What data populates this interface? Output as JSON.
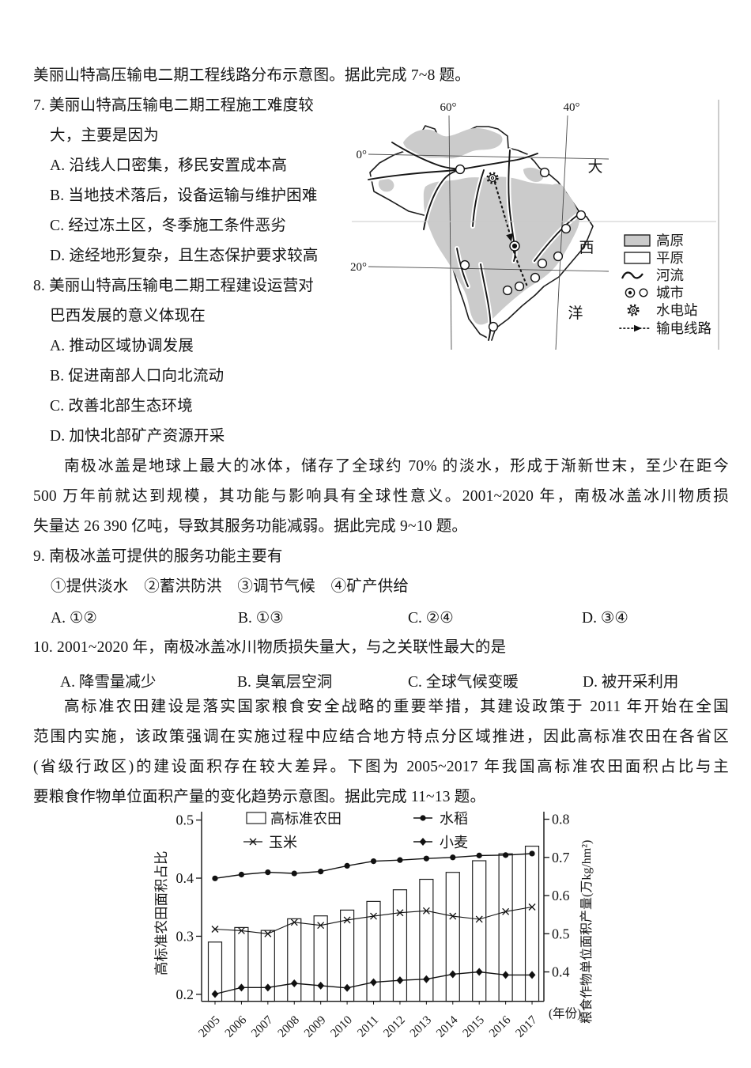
{
  "intro_line": "美丽山特高压输电二期工程线路分布示意图。据此完成 7~8 题。",
  "q7": {
    "stem_l1": "7. 美丽山特高压输电二期工程施工难度较",
    "stem_l2": "大，主要是因为",
    "options": [
      "A. 沿线人口密集，移民安置成本高",
      "B. 当地技术落后，设备运输与维护困难",
      "C. 经过冻土区，冬季施工条件恶劣",
      "D. 途经地形复杂，且生态保护要求较高"
    ]
  },
  "q8": {
    "stem_l1": "8. 美丽山特高压输电二期工程建设运营对",
    "stem_l2": "巴西发展的意义体现在",
    "options": [
      "A. 推动区域协调发展",
      "B. 促进南部人口向北流动",
      "C. 改善北部生态环境",
      "D. 加快北部矿产资源开采"
    ]
  },
  "map": {
    "lon_left": "60°",
    "lon_right": "40°",
    "lat_top": "0°",
    "lat_bottom": "20°",
    "ocean_chars": [
      "大",
      "西",
      "洋"
    ],
    "legend": [
      {
        "symbol": "plateau-swatch",
        "label": "高原"
      },
      {
        "symbol": "plain-swatch",
        "label": "平原"
      },
      {
        "symbol": "river-line",
        "label": "河流"
      },
      {
        "symbol": "city-circles",
        "label": "城市"
      },
      {
        "symbol": "hydro-gear",
        "label": "水电站"
      },
      {
        "symbol": "dotted-arrow",
        "label": "输电线路"
      }
    ]
  },
  "para_antarctic": {
    "l1": "南极冰盖是地球上最大的冰体，储存了全球约 70% 的淡水，形成于渐新世末，至少在距今",
    "l2": "500 万年前就达到规模，其功能与影响具有全球性意义。2001~2020 年，南极冰盖冰川物质损",
    "l3": "失量达 26 390 亿吨，导致其服务功能减弱。据此完成 9~10 题。"
  },
  "q9": {
    "stem": "9. 南极冰盖可提供的服务功能主要有",
    "sub_options": "①提供淡水　②蓄洪防洪　③调节气候　④矿产供给",
    "options": [
      "A. ①②",
      "B. ①③",
      "C. ②④",
      "D. ③④"
    ]
  },
  "q10": {
    "stem": "10. 2001~2020 年，南极冰盖冰川物质损失量大，与之关联性最大的是",
    "options": [
      "A. 降雪量减少",
      "B. 臭氧层空洞",
      "C. 全球气候变暖",
      "D. 被开采利用"
    ]
  },
  "para_farmland": {
    "l1": "高标准农田建设是落实国家粮食安全战略的重要举措，其建设政策于 2011 年开始在全国",
    "l2": "范围内实施，该政策强调在实施过程中应结合地方特点分区域推进，因此高标准农田在各省区",
    "l3": "(省级行政区)的建设面积存在较大差异。下图为 2005~2017 年我国高标准农田面积占比与主",
    "l4": "要粮食作物单位面积产量的变化趋势示意图。据此完成 11~13 题。"
  },
  "chart_data": {
    "type": "bar",
    "categories": [
      2005,
      2006,
      2007,
      2008,
      2009,
      2010,
      2011,
      2012,
      2013,
      2014,
      2015,
      2016,
      2017
    ],
    "bar_series": {
      "name": "高标准农田",
      "axis": "left",
      "values": [
        0.29,
        0.315,
        0.31,
        0.33,
        0.335,
        0.345,
        0.36,
        0.38,
        0.398,
        0.41,
        0.43,
        0.442,
        0.455
      ]
    },
    "series": [
      {
        "name": "水稻",
        "marker": "circle",
        "axis": "right",
        "values": [
          0.645,
          0.655,
          0.661,
          0.658,
          0.663,
          0.678,
          0.69,
          0.693,
          0.697,
          0.7,
          0.705,
          0.706,
          0.71
        ]
      },
      {
        "name": "玉米",
        "marker": "x",
        "axis": "right",
        "values": [
          0.512,
          0.508,
          0.5,
          0.53,
          0.522,
          0.536,
          0.546,
          0.555,
          0.56,
          0.546,
          0.538,
          0.558,
          0.57
        ]
      },
      {
        "name": "小麦",
        "marker": "diamond",
        "axis": "right",
        "values": [
          0.342,
          0.359,
          0.359,
          0.37,
          0.364,
          0.358,
          0.373,
          0.378,
          0.381,
          0.394,
          0.4,
          0.392,
          0.392
        ]
      }
    ],
    "left_axis": {
      "label": "高标准农田面积占比",
      "ticks": [
        0.2,
        0.3,
        0.4,
        0.5
      ],
      "range": [
        0.188,
        0.508
      ]
    },
    "right_axis": {
      "label": "粮食作物单位面积产量(万kg/hm²)",
      "ticks": [
        0.4,
        0.5,
        0.6,
        0.7,
        0.8
      ],
      "range": [
        0.323,
        0.81
      ]
    },
    "x_label": "(年份)",
    "grid": false,
    "legend_position": "top-inside",
    "colors": {
      "ink": "#111111",
      "bar_fill": "#ffffff",
      "plateau_gray": "#cbcbcb"
    }
  }
}
